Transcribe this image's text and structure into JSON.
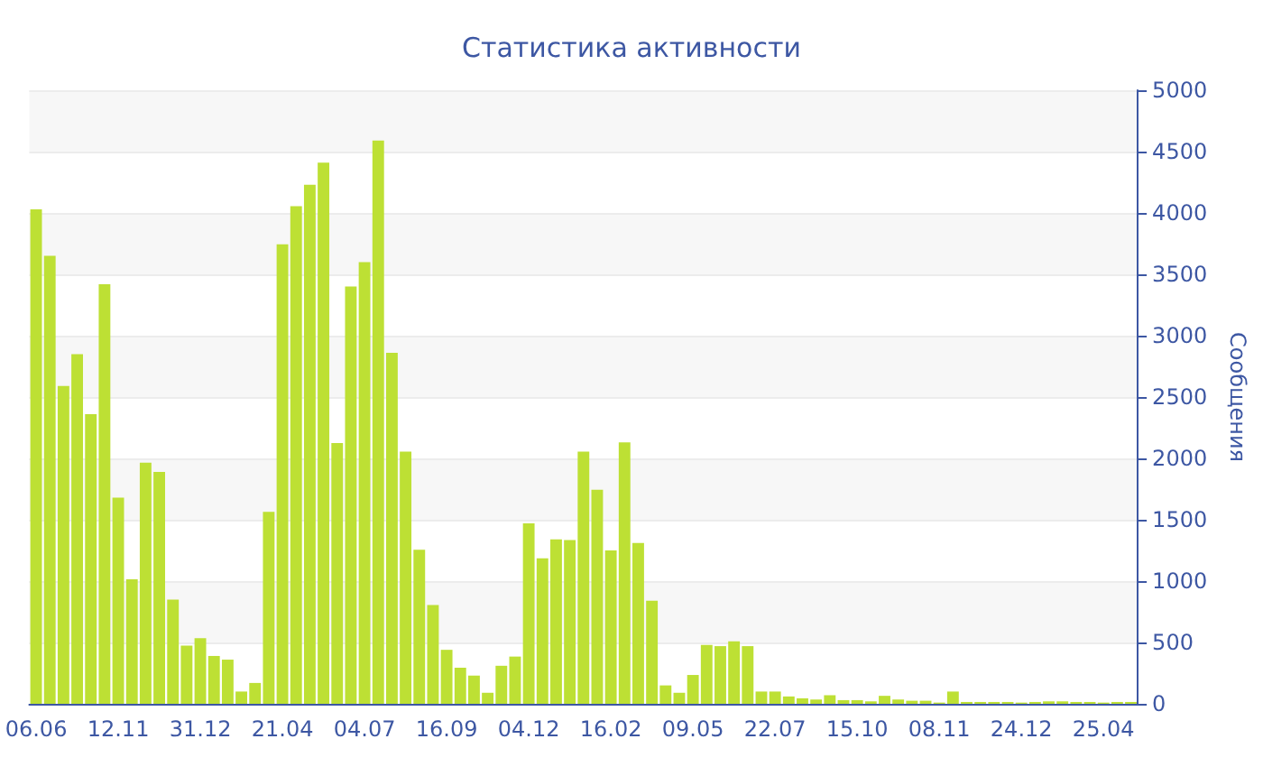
{
  "chart_data": {
    "type": "bar",
    "title": "Статистика активности",
    "ylabel": "Сообщения",
    "categories": [
      "06.06",
      null,
      null,
      null,
      null,
      null,
      "12.11",
      null,
      null,
      null,
      null,
      null,
      "31.12",
      null,
      null,
      null,
      null,
      null,
      "21.04",
      null,
      null,
      null,
      null,
      null,
      "04.07",
      null,
      null,
      null,
      null,
      null,
      "16.09",
      null,
      null,
      null,
      null,
      null,
      "04.12",
      null,
      null,
      null,
      null,
      null,
      "16.02",
      null,
      null,
      null,
      null,
      null,
      "09.05",
      null,
      null,
      null,
      null,
      null,
      "22.07",
      null,
      null,
      null,
      null,
      null,
      "15.10",
      null,
      null,
      null,
      null,
      null,
      "08.11",
      null,
      null,
      null,
      null,
      null,
      "24.12",
      null,
      null,
      null,
      null,
      null,
      "25.04",
      null,
      null
    ],
    "values": [
      4030,
      3650,
      2590,
      2850,
      2360,
      3420,
      1680,
      1015,
      1965,
      1890,
      850,
      475,
      535,
      390,
      360,
      100,
      170,
      1565,
      3745,
      4055,
      4230,
      4410,
      2125,
      3400,
      3600,
      4590,
      2860,
      2055,
      1255,
      805,
      440,
      295,
      230,
      90,
      310,
      385,
      1470,
      1185,
      1340,
      1335,
      2055,
      1745,
      1250,
      2130,
      1310,
      840,
      150,
      90,
      235,
      480,
      470,
      510,
      470,
      100,
      100,
      60,
      45,
      35,
      70,
      30,
      30,
      20,
      65,
      35,
      25,
      25,
      10,
      100,
      15,
      15,
      15,
      15,
      10,
      15,
      20,
      20,
      15,
      15,
      10,
      15,
      15
    ],
    "color": "#bde034",
    "ylim": [
      0,
      5000
    ],
    "yticks": [
      0,
      500,
      1000,
      1500,
      2000,
      2500,
      3000,
      3500,
      4000,
      4500,
      5000
    ],
    "grid": true
  }
}
